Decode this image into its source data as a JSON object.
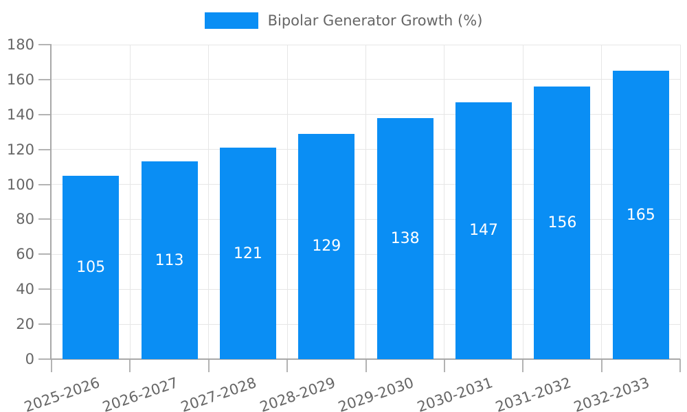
{
  "chart_data": {
    "type": "bar",
    "title": "",
    "legend": {
      "label": "Bipolar Generator Growth (%)",
      "position": "top"
    },
    "categories": [
      "2025-2026",
      "2026-2027",
      "2027-2028",
      "2028-2029",
      "2029-2030",
      "2030-2031",
      "2031-2032",
      "2032-2033"
    ],
    "series": [
      {
        "name": "Bipolar Generator Growth (%)",
        "values": [
          105,
          113,
          121,
          129,
          138,
          147,
          156,
          165
        ]
      }
    ],
    "value_labels_shown": true,
    "xlabel": "",
    "ylabel": "",
    "ylim": [
      0,
      180
    ],
    "yticks": [
      0,
      20,
      40,
      60,
      80,
      100,
      120,
      140,
      160,
      180
    ],
    "grid": true,
    "legend_position": "top",
    "colors": {
      "bar": "#0a8ef4",
      "value_label": "#ffffff",
      "tick_label": "#666666",
      "gridline": "#e6e6e6",
      "tick_mark": "#b3b3b3",
      "axis_line": "#a8a8a8",
      "background": "#ffffff"
    }
  }
}
